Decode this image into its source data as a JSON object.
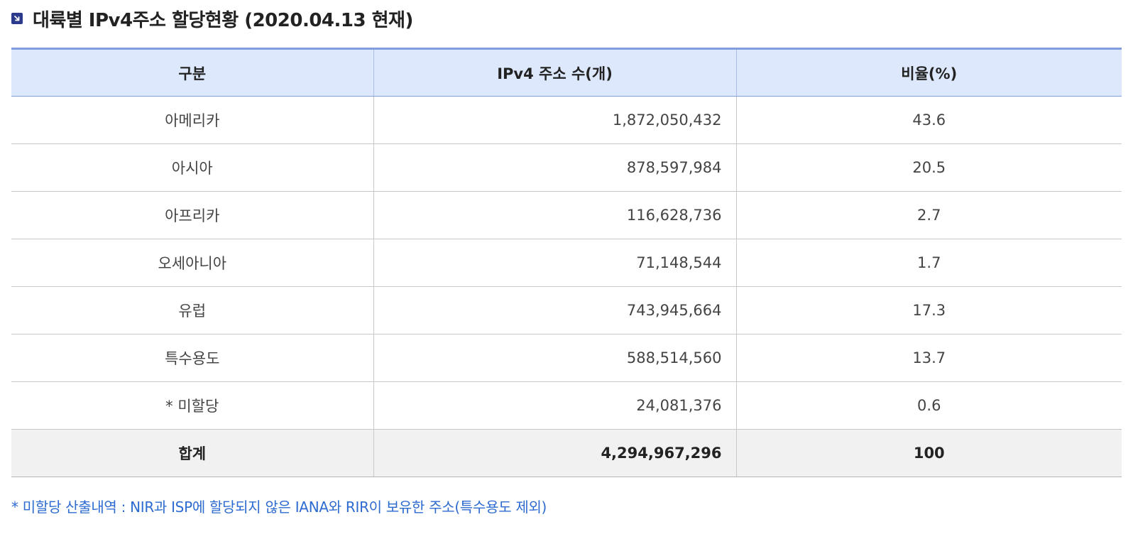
{
  "title": "대륙별 IPv4주소 할당현황 (2020.04.13 현재)",
  "title_icon": "arrow-down-right-icon",
  "colors": {
    "accent": "#7f9edb",
    "header_bg": "#dde8fd",
    "total_bg": "#f1f1f1",
    "footnote": "#2d6bd0",
    "icon_bg": "#2b3a8a"
  },
  "table": {
    "headers": [
      "구분",
      "IPv4 주소 수(개)",
      "비율(%)"
    ],
    "rows": [
      {
        "region": "아메리카",
        "count": "1,872,050,432",
        "ratio": "43.6"
      },
      {
        "region": "아시아",
        "count": "878,597,984",
        "ratio": "20.5"
      },
      {
        "region": "아프리카",
        "count": "116,628,736",
        "ratio": "2.7"
      },
      {
        "region": "오세아니아",
        "count": "71,148,544",
        "ratio": "1.7"
      },
      {
        "region": "유럽",
        "count": "743,945,664",
        "ratio": "17.3"
      },
      {
        "region": "특수용도",
        "count": "588,514,560",
        "ratio": "13.7"
      },
      {
        "region": "* 미할당",
        "count": "24,081,376",
        "ratio": "0.6"
      }
    ],
    "total": {
      "region": "합계",
      "count": "4,294,967,296",
      "ratio": "100"
    }
  },
  "footnote": "* 미할당 산출내역 : NIR과 ISP에 할당되지 않은 IANA와 RIR이 보유한 주소(특수용도 제외)"
}
